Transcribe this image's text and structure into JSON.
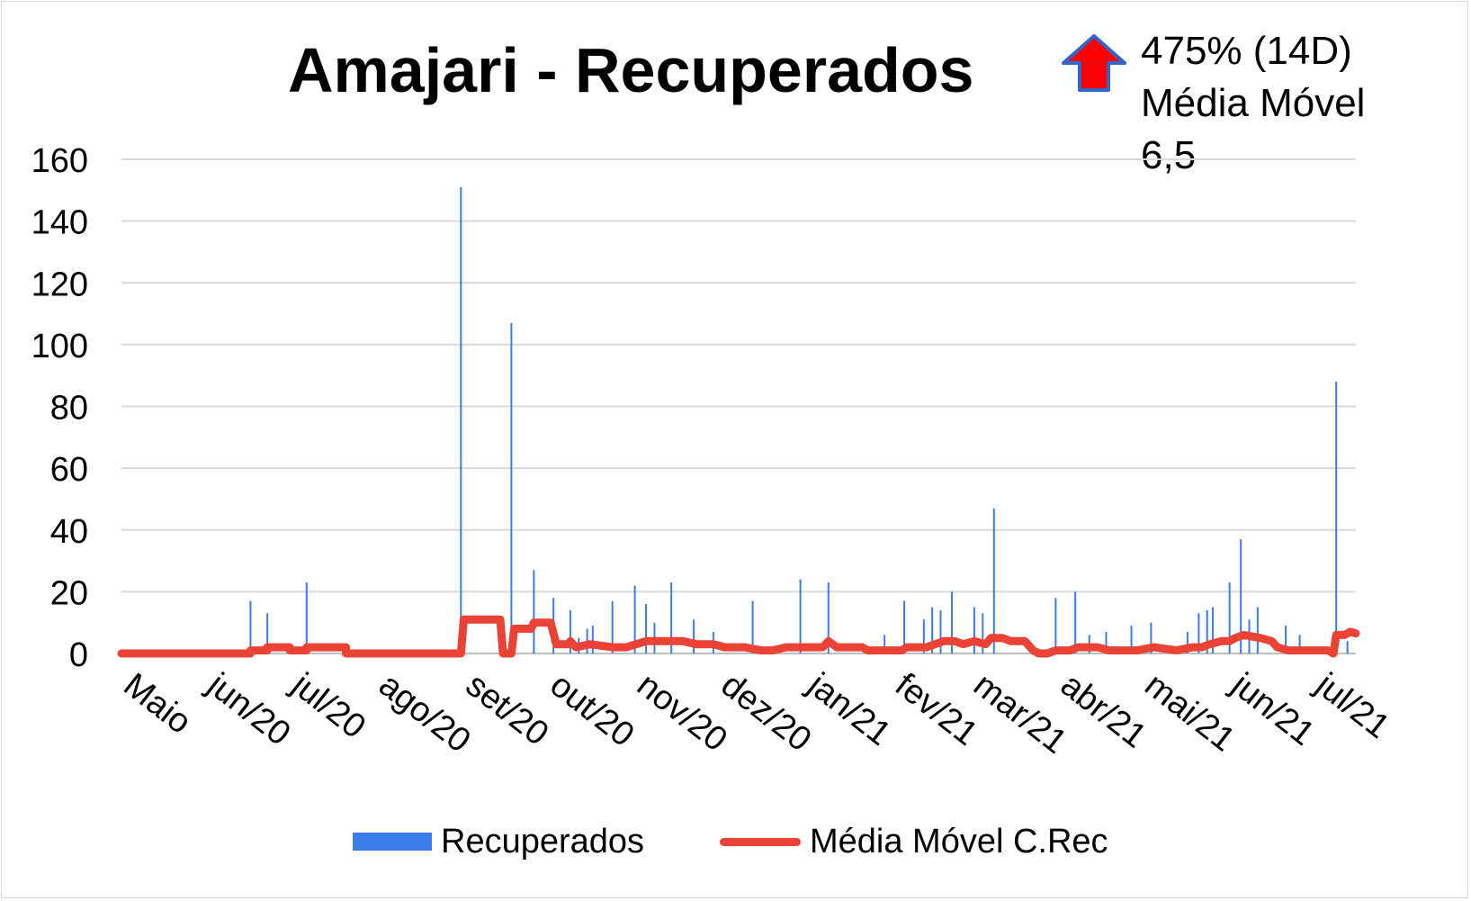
{
  "title": "Amajari  - Recuperados",
  "annotation": {
    "lines": [
      "475% (14D)",
      "Média Móvel",
      "6,5"
    ],
    "arrow_icon": "up-arrow-icon",
    "arrow_color": "#ff0000",
    "arrow_border": "#3366cc"
  },
  "legend": {
    "bars_label": "Recuperados",
    "line_label": "Média Móvel C.Rec"
  },
  "colors": {
    "bars": "#3b7de8",
    "line": "#ea4335",
    "grid": "#d9d9d9"
  },
  "chart_data": {
    "type": "bar",
    "title": "Amajari  - Recuperados",
    "xlabel": "",
    "ylabel": "",
    "ylim": [
      0,
      160
    ],
    "yticks": [
      0,
      20,
      40,
      60,
      80,
      100,
      120,
      140,
      160
    ],
    "grid": true,
    "legend_position": "bottom",
    "x_range_days": [
      0,
      440
    ],
    "x_tick_labels": [
      {
        "label": "Maio",
        "day": 0
      },
      {
        "label": "jun/20",
        "day": 30
      },
      {
        "label": "jul/20",
        "day": 60
      },
      {
        "label": "ago/20",
        "day": 91
      },
      {
        "label": "set/20",
        "day": 122
      },
      {
        "label": "out/20",
        "day": 152
      },
      {
        "label": "nov/20",
        "day": 183
      },
      {
        "label": "dez/20",
        "day": 213
      },
      {
        "label": "jan/21",
        "day": 244
      },
      {
        "label": "fev/21",
        "day": 275
      },
      {
        "label": "mar/21",
        "day": 303
      },
      {
        "label": "abr/21",
        "day": 334
      },
      {
        "label": "mai/21",
        "day": 364
      },
      {
        "label": "jun/21",
        "day": 395
      },
      {
        "label": "jul/21",
        "day": 425
      }
    ],
    "series": [
      {
        "name": "Recuperados",
        "type": "bar",
        "points": [
          [
            46,
            17
          ],
          [
            52,
            13
          ],
          [
            66,
            23
          ],
          [
            121,
            151
          ],
          [
            139,
            107
          ],
          [
            147,
            27
          ],
          [
            154,
            18
          ],
          [
            160,
            14
          ],
          [
            163,
            5
          ],
          [
            166,
            8
          ],
          [
            168,
            9
          ],
          [
            175,
            17
          ],
          [
            183,
            22
          ],
          [
            187,
            16
          ],
          [
            190,
            10
          ],
          [
            196,
            23
          ],
          [
            204,
            11
          ],
          [
            211,
            7
          ],
          [
            225,
            17
          ],
          [
            242,
            24
          ],
          [
            252,
            23
          ],
          [
            272,
            6
          ],
          [
            279,
            17
          ],
          [
            286,
            11
          ],
          [
            289,
            15
          ],
          [
            292,
            14
          ],
          [
            296,
            20
          ],
          [
            304,
            15
          ],
          [
            307,
            13
          ],
          [
            311,
            47
          ],
          [
            333,
            18
          ],
          [
            340,
            20
          ],
          [
            345,
            6
          ],
          [
            351,
            7
          ],
          [
            360,
            9
          ],
          [
            367,
            10
          ],
          [
            380,
            7
          ],
          [
            384,
            13
          ],
          [
            387,
            14
          ],
          [
            389,
            15
          ],
          [
            395,
            23
          ],
          [
            399,
            37
          ],
          [
            402,
            11
          ],
          [
            405,
            15
          ],
          [
            415,
            9
          ],
          [
            420,
            6
          ],
          [
            433,
            88
          ],
          [
            437,
            4
          ]
        ]
      },
      {
        "name": "Média Móvel C.Rec",
        "type": "line",
        "points": [
          [
            0,
            0
          ],
          [
            46,
            0
          ],
          [
            46,
            1
          ],
          [
            52,
            1
          ],
          [
            52,
            2
          ],
          [
            60,
            2
          ],
          [
            60,
            1
          ],
          [
            66,
            1
          ],
          [
            66,
            2
          ],
          [
            80,
            2
          ],
          [
            80,
            0
          ],
          [
            121,
            0
          ],
          [
            122,
            11
          ],
          [
            135,
            11
          ],
          [
            136,
            0
          ],
          [
            139,
            0
          ],
          [
            140,
            8
          ],
          [
            146,
            8
          ],
          [
            147,
            10
          ],
          [
            153,
            10
          ],
          [
            155,
            3
          ],
          [
            160,
            3
          ],
          [
            160,
            4
          ],
          [
            162,
            2
          ],
          [
            167,
            3
          ],
          [
            175,
            2
          ],
          [
            180,
            2
          ],
          [
            187,
            4
          ],
          [
            200,
            4
          ],
          [
            205,
            3
          ],
          [
            211,
            3
          ],
          [
            215,
            2
          ],
          [
            222,
            2
          ],
          [
            228,
            1
          ],
          [
            232,
            1
          ],
          [
            237,
            2
          ],
          [
            250,
            2
          ],
          [
            252,
            4
          ],
          [
            255,
            2
          ],
          [
            264,
            2
          ],
          [
            266,
            1
          ],
          [
            274,
            1
          ],
          [
            278,
            1
          ],
          [
            280,
            2
          ],
          [
            287,
            2
          ],
          [
            290,
            3
          ],
          [
            293,
            4
          ],
          [
            297,
            4
          ],
          [
            300,
            3
          ],
          [
            304,
            4
          ],
          [
            308,
            3
          ],
          [
            310,
            5
          ],
          [
            314,
            5
          ],
          [
            317,
            4
          ],
          [
            322,
            4
          ],
          [
            325,
            1
          ],
          [
            327,
            0
          ],
          [
            330,
            0
          ],
          [
            333,
            1
          ],
          [
            338,
            1
          ],
          [
            341,
            2
          ],
          [
            348,
            2
          ],
          [
            352,
            1
          ],
          [
            362,
            1
          ],
          [
            368,
            2
          ],
          [
            376,
            1
          ],
          [
            382,
            2
          ],
          [
            385,
            2
          ],
          [
            388,
            3
          ],
          [
            392,
            4
          ],
          [
            395,
            4
          ],
          [
            397,
            5
          ],
          [
            400,
            6
          ],
          [
            406,
            5
          ],
          [
            410,
            4
          ],
          [
            412,
            2
          ],
          [
            416,
            1
          ],
          [
            420,
            1
          ],
          [
            430,
            1
          ],
          [
            432,
            0
          ],
          [
            433,
            6
          ],
          [
            436,
            6
          ],
          [
            438,
            7
          ],
          [
            440,
            6.5
          ]
        ]
      }
    ]
  }
}
